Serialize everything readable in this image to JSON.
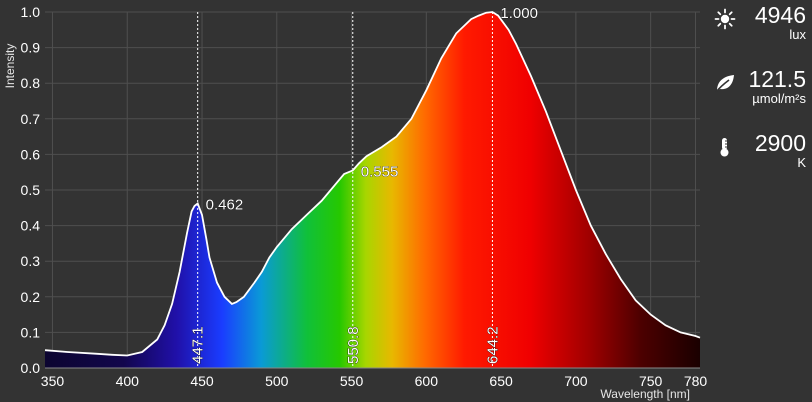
{
  "chart_data": {
    "type": "area",
    "title": "",
    "xlabel": "Wavelength [nm]",
    "ylabel": "Intensity",
    "xlim": [
      345,
      783
    ],
    "ylim": [
      0,
      1.0
    ],
    "grid": true,
    "x_ticks": [
      350,
      400,
      450,
      500,
      550,
      600,
      650,
      700,
      750,
      780
    ],
    "y_ticks": [
      0.0,
      0.1,
      0.2,
      0.3,
      0.4,
      0.5,
      0.6,
      0.7,
      0.8,
      0.9,
      1.0
    ],
    "y_tick_labels": [
      "0.0",
      "0.1",
      "0.2",
      "0.3",
      "0.4",
      "0.5",
      "0.6",
      "0.7",
      "0.8",
      "0.9",
      "1.0"
    ],
    "series": [
      {
        "x": [
          345,
          360,
          380,
          390,
          400,
          410,
          420,
          425,
          430,
          435,
          440,
          443,
          445,
          447.1,
          450,
          453,
          455,
          460,
          465,
          470,
          473,
          478,
          485,
          490,
          495,
          500,
          510,
          520,
          530,
          540,
          545,
          550.8,
          555,
          560,
          570,
          580,
          590,
          600,
          610,
          620,
          630,
          635,
          640,
          644.2,
          648,
          655,
          660,
          670,
          680,
          690,
          700,
          710,
          720,
          730,
          740,
          750,
          760,
          770,
          780,
          783
        ],
        "y": [
          0.05,
          0.045,
          0.04,
          0.037,
          0.035,
          0.045,
          0.08,
          0.12,
          0.18,
          0.27,
          0.38,
          0.44,
          0.455,
          0.462,
          0.43,
          0.36,
          0.31,
          0.24,
          0.2,
          0.18,
          0.185,
          0.2,
          0.24,
          0.27,
          0.31,
          0.34,
          0.39,
          0.43,
          0.47,
          0.52,
          0.545,
          0.555,
          0.575,
          0.595,
          0.62,
          0.65,
          0.7,
          0.78,
          0.87,
          0.94,
          0.98,
          0.99,
          0.998,
          1.0,
          0.99,
          0.95,
          0.91,
          0.82,
          0.72,
          0.61,
          0.5,
          0.4,
          0.32,
          0.25,
          0.19,
          0.15,
          0.12,
          0.1,
          0.09,
          0.085
        ]
      }
    ],
    "peaks": [
      {
        "x": 447.1,
        "x_label": "447.1",
        "value_label": "0.462",
        "y": 0.462
      },
      {
        "x": 550.8,
        "x_label": "550.8",
        "value_label": "0.555",
        "y": 0.555
      },
      {
        "x": 644.2,
        "x_label": "644.2",
        "value_label": "1.000",
        "y": 1.0
      }
    ]
  },
  "readouts": {
    "illuminance": {
      "icon": "sun-icon",
      "value": "4946",
      "unit": "lux"
    },
    "ppfd": {
      "icon": "leaf-icon",
      "value": "121.5",
      "unit": "µmol/m²s"
    },
    "cct": {
      "icon": "thermometer-icon",
      "value": "2900",
      "unit": "K"
    }
  },
  "colors": {
    "background": "#333333",
    "grid": "#4f4f4f",
    "curve": "#ffffff"
  }
}
